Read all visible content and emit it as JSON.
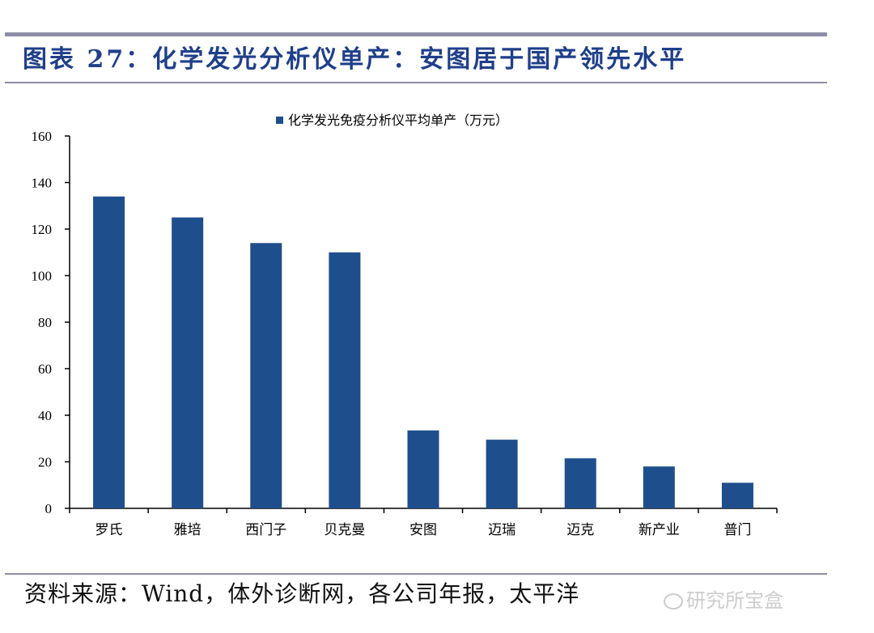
{
  "header": {
    "title": "图表 27：化学发光分析仪单产：安图居于国产领先水平"
  },
  "footer": {
    "source": "资料来源：Wind，体外诊断网，各公司年报，太平洋",
    "watermark": "研究所宝盒"
  },
  "chart_data": {
    "type": "bar",
    "title": "",
    "legend": [
      "化学发光免疫分析仪平均单产（万元）"
    ],
    "legend_position": "top-center",
    "categories": [
      "罗氏",
      "雅培",
      "西门子",
      "贝克曼",
      "安图",
      "迈瑞",
      "迈克",
      "新产业",
      "普门"
    ],
    "series": [
      {
        "name": "化学发光免疫分析仪平均单产（万元）",
        "values": [
          134,
          125,
          114,
          110,
          33.5,
          29.5,
          21.5,
          18,
          11
        ]
      }
    ],
    "ylim": [
      0,
      160
    ],
    "yticks": [
      0,
      20,
      40,
      60,
      80,
      100,
      120,
      140,
      160
    ],
    "xlabel": "",
    "ylabel": "",
    "grid": false,
    "colors": {
      "bar": "#1f4e8c",
      "axis": "#000000"
    }
  }
}
